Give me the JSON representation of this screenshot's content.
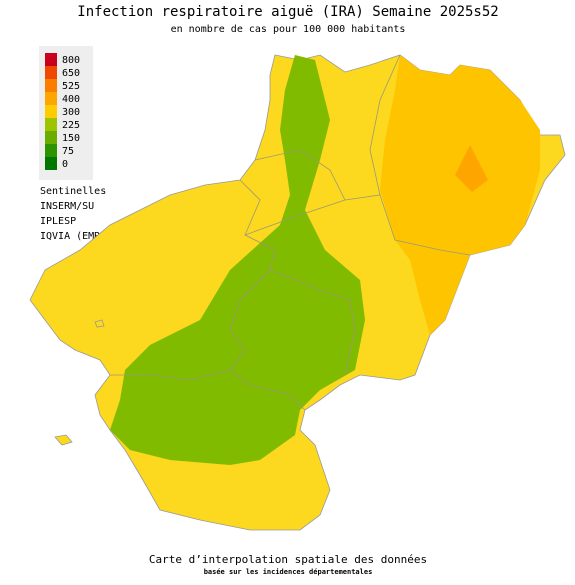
{
  "header": {
    "title": "Infection respiratoire aiguë (IRA) Semaine 2025s52",
    "subtitle": "en nombre de cas pour 100 000 habitants"
  },
  "legend": {
    "items": [
      {
        "label": 800,
        "color": "#c8001e"
      },
      {
        "label": 650,
        "color": "#f04800"
      },
      {
        "label": 525,
        "color": "#fa7d00"
      },
      {
        "label": 400,
        "color": "#ffa500"
      },
      {
        "label": 300,
        "color": "#ffcc00"
      },
      {
        "label": 225,
        "color": "#9cc400"
      },
      {
        "label": 150,
        "color": "#6aac00"
      },
      {
        "label": 75,
        "color": "#2c9400"
      },
      {
        "label": 0,
        "color": "#007800"
      }
    ]
  },
  "sources": [
    "Sentinelles",
    "INSERM/SU",
    "IPLESP",
    "IQVIA (EMR)"
  ],
  "footer": {
    "line1": "Carte d’interpolation spatiale des données",
    "line2": "basée sur les incidences départementales"
  }
}
